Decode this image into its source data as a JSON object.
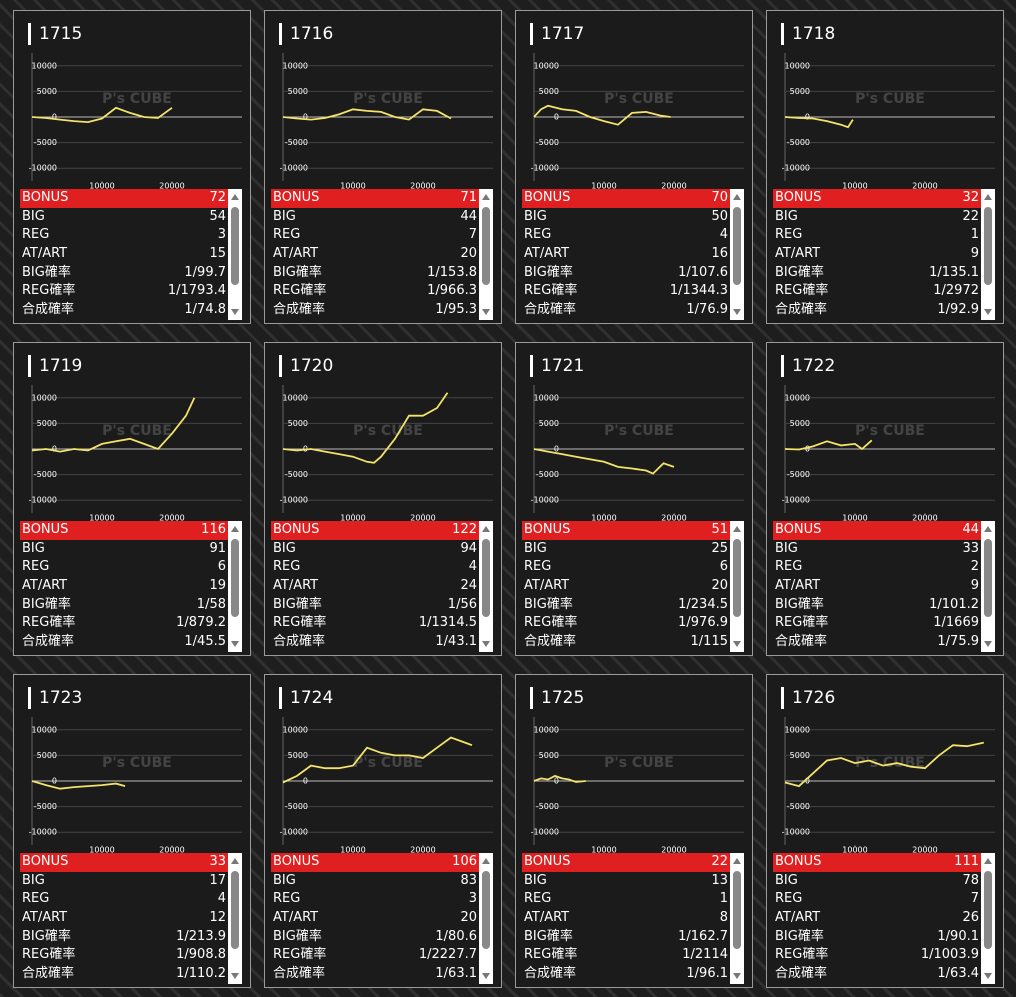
{
  "watermark": "P's CUBE",
  "chart_data": [
    {
      "type": "line",
      "title": "1715",
      "color": "#f3e36a",
      "xlim": [
        0,
        30000
      ],
      "ylim": [
        -12500,
        12500
      ],
      "xticks": [
        10000,
        20000
      ],
      "yticks": [
        -10000,
        -5000,
        0,
        5000,
        10000
      ],
      "grid": true,
      "x": [
        0,
        2000,
        4000,
        6000,
        8000,
        10000,
        12000,
        14000,
        16000,
        18000,
        20000
      ],
      "values": [
        0,
        -200,
        -500,
        -800,
        -1000,
        -300,
        1800,
        800,
        0,
        -200,
        1800
      ],
      "stats": [
        {
          "label": "BONUS",
          "value": 72
        },
        {
          "label": "BIG",
          "value": 54
        },
        {
          "label": "REG",
          "value": 3
        },
        {
          "label": "AT/ART",
          "value": 15
        },
        {
          "label": "BIG確率",
          "value": "1/99.7"
        },
        {
          "label": "REG確率",
          "value": "1/1793.4"
        },
        {
          "label": "合成確率",
          "value": "1/74.8"
        }
      ]
    },
    {
      "type": "line",
      "title": "1716",
      "color": "#f3e36a",
      "xlim": [
        0,
        30000
      ],
      "ylim": [
        -12500,
        12500
      ],
      "xticks": [
        10000,
        20000
      ],
      "yticks": [
        -10000,
        -5000,
        0,
        5000,
        10000
      ],
      "grid": true,
      "x": [
        0,
        2000,
        4000,
        6000,
        8000,
        10000,
        12000,
        14000,
        16000,
        18000,
        20000,
        22000,
        24000
      ],
      "values": [
        0,
        -300,
        -500,
        -200,
        500,
        1500,
        1200,
        1000,
        0,
        -500,
        1500,
        1200,
        -300
      ],
      "stats": [
        {
          "label": "BONUS",
          "value": 71
        },
        {
          "label": "BIG",
          "value": 44
        },
        {
          "label": "REG",
          "value": 7
        },
        {
          "label": "AT/ART",
          "value": 20
        },
        {
          "label": "BIG確率",
          "value": "1/153.8"
        },
        {
          "label": "REG確率",
          "value": "1/966.3"
        },
        {
          "label": "合成確率",
          "value": "1/95.3"
        }
      ]
    },
    {
      "type": "line",
      "title": "1717",
      "color": "#f3e36a",
      "xlim": [
        0,
        30000
      ],
      "ylim": [
        -12500,
        12500
      ],
      "xticks": [
        10000,
        20000
      ],
      "yticks": [
        -10000,
        -5000,
        0,
        5000,
        10000
      ],
      "grid": true,
      "x": [
        0,
        1000,
        2000,
        4000,
        6000,
        8000,
        10000,
        12000,
        14000,
        16000,
        18000,
        19500
      ],
      "values": [
        0,
        1500,
        2200,
        1500,
        1200,
        0,
        -800,
        -1500,
        800,
        1000,
        300,
        0
      ],
      "stats": [
        {
          "label": "BONUS",
          "value": 70
        },
        {
          "label": "BIG",
          "value": 50
        },
        {
          "label": "REG",
          "value": 4
        },
        {
          "label": "AT/ART",
          "value": 16
        },
        {
          "label": "BIG確率",
          "value": "1/107.6"
        },
        {
          "label": "REG確率",
          "value": "1/1344.3"
        },
        {
          "label": "合成確率",
          "value": "1/76.9"
        }
      ]
    },
    {
      "type": "line",
      "title": "1718",
      "color": "#f3e36a",
      "xlim": [
        0,
        30000
      ],
      "ylim": [
        -12500,
        12500
      ],
      "xticks": [
        10000,
        20000
      ],
      "yticks": [
        -10000,
        -5000,
        0,
        5000,
        10000
      ],
      "grid": true,
      "x": [
        0,
        2000,
        4000,
        6000,
        8000,
        9000,
        9700
      ],
      "values": [
        0,
        -200,
        -300,
        -800,
        -1500,
        -2000,
        -500
      ],
      "stats": [
        {
          "label": "BONUS",
          "value": 32
        },
        {
          "label": "BIG",
          "value": 22
        },
        {
          "label": "REG",
          "value": 1
        },
        {
          "label": "AT/ART",
          "value": 9
        },
        {
          "label": "BIG確率",
          "value": "1/135.1"
        },
        {
          "label": "REG確率",
          "value": "1/2972"
        },
        {
          "label": "合成確率",
          "value": "1/92.9"
        }
      ]
    },
    {
      "type": "line",
      "title": "1719",
      "color": "#f3e36a",
      "xlim": [
        0,
        30000
      ],
      "ylim": [
        -12500,
        12500
      ],
      "xticks": [
        10000,
        20000
      ],
      "yticks": [
        -10000,
        -5000,
        0,
        5000,
        10000
      ],
      "grid": true,
      "x": [
        0,
        2000,
        4000,
        6000,
        8000,
        10000,
        12000,
        14000,
        16000,
        18000,
        20000,
        22000,
        23200
      ],
      "values": [
        -300,
        0,
        -500,
        0,
        -300,
        1000,
        1500,
        2000,
        1000,
        0,
        3000,
        6500,
        10000
      ],
      "stats": [
        {
          "label": "BONUS",
          "value": 116
        },
        {
          "label": "BIG",
          "value": 91
        },
        {
          "label": "REG",
          "value": 6
        },
        {
          "label": "AT/ART",
          "value": 19
        },
        {
          "label": "BIG確率",
          "value": "1/58"
        },
        {
          "label": "REG確率",
          "value": "1/879.2"
        },
        {
          "label": "合成確率",
          "value": "1/45.5"
        }
      ]
    },
    {
      "type": "line",
      "title": "1720",
      "color": "#f3e36a",
      "xlim": [
        0,
        30000
      ],
      "ylim": [
        -12500,
        12500
      ],
      "xticks": [
        10000,
        20000
      ],
      "yticks": [
        -10000,
        -5000,
        0,
        5000,
        10000
      ],
      "grid": true,
      "x": [
        0,
        2000,
        4000,
        6000,
        8000,
        10000,
        12000,
        13000,
        14000,
        16000,
        18000,
        20000,
        22000,
        23500
      ],
      "values": [
        0,
        -300,
        0,
        -500,
        -1000,
        -1500,
        -2500,
        -2700,
        -1500,
        2000,
        6500,
        6500,
        8000,
        11000
      ],
      "stats": [
        {
          "label": "BONUS",
          "value": 122
        },
        {
          "label": "BIG",
          "value": 94
        },
        {
          "label": "REG",
          "value": 4
        },
        {
          "label": "AT/ART",
          "value": 24
        },
        {
          "label": "BIG確率",
          "value": "1/56"
        },
        {
          "label": "REG確率",
          "value": "1/1314.5"
        },
        {
          "label": "合成確率",
          "value": "1/43.1"
        }
      ]
    },
    {
      "type": "line",
      "title": "1721",
      "color": "#f3e36a",
      "xlim": [
        0,
        30000
      ],
      "ylim": [
        -12500,
        12500
      ],
      "xticks": [
        10000,
        20000
      ],
      "yticks": [
        -10000,
        -5000,
        0,
        5000,
        10000
      ],
      "grid": true,
      "x": [
        0,
        2000,
        4000,
        6000,
        8000,
        10000,
        12000,
        14000,
        16000,
        17000,
        18500,
        20000
      ],
      "values": [
        0,
        -500,
        -1000,
        -1500,
        -2000,
        -2500,
        -3500,
        -3800,
        -4200,
        -4800,
        -2800,
        -3500
      ],
      "stats": [
        {
          "label": "BONUS",
          "value": 51
        },
        {
          "label": "BIG",
          "value": 25
        },
        {
          "label": "REG",
          "value": 6
        },
        {
          "label": "AT/ART",
          "value": 20
        },
        {
          "label": "BIG確率",
          "value": "1/234.5"
        },
        {
          "label": "REG確率",
          "value": "1/976.9"
        },
        {
          "label": "合成確率",
          "value": "1/115"
        }
      ]
    },
    {
      "type": "line",
      "title": "1722",
      "color": "#f3e36a",
      "xlim": [
        0,
        30000
      ],
      "ylim": [
        -12500,
        12500
      ],
      "xticks": [
        10000,
        20000
      ],
      "yticks": [
        -10000,
        -5000,
        0,
        5000,
        10000
      ],
      "grid": true,
      "x": [
        0,
        2000,
        4000,
        6000,
        8000,
        10000,
        11000,
        12400
      ],
      "values": [
        0,
        -100,
        500,
        1500,
        700,
        1000,
        0,
        1700
      ],
      "stats": [
        {
          "label": "BONUS",
          "value": 44
        },
        {
          "label": "BIG",
          "value": 33
        },
        {
          "label": "REG",
          "value": 2
        },
        {
          "label": "AT/ART",
          "value": 9
        },
        {
          "label": "BIG確率",
          "value": "1/101.2"
        },
        {
          "label": "REG確率",
          "value": "1/1669"
        },
        {
          "label": "合成確率",
          "value": "1/75.9"
        }
      ]
    },
    {
      "type": "line",
      "title": "1723",
      "color": "#f3e36a",
      "xlim": [
        0,
        30000
      ],
      "ylim": [
        -12500,
        12500
      ],
      "xticks": [
        10000,
        20000
      ],
      "yticks": [
        -10000,
        -5000,
        0,
        5000,
        10000
      ],
      "grid": true,
      "x": [
        0,
        2000,
        4000,
        6000,
        8000,
        10000,
        12000,
        13300
      ],
      "values": [
        0,
        -800,
        -1500,
        -1200,
        -1000,
        -800,
        -500,
        -1000
      ],
      "stats": [
        {
          "label": "BONUS",
          "value": 33
        },
        {
          "label": "BIG",
          "value": 17
        },
        {
          "label": "REG",
          "value": 4
        },
        {
          "label": "AT/ART",
          "value": 12
        },
        {
          "label": "BIG確率",
          "value": "1/213.9"
        },
        {
          "label": "REG確率",
          "value": "1/908.8"
        },
        {
          "label": "合成確率",
          "value": "1/110.2"
        }
      ]
    },
    {
      "type": "line",
      "title": "1724",
      "color": "#f3e36a",
      "xlim": [
        0,
        30000
      ],
      "ylim": [
        -12500,
        12500
      ],
      "xticks": [
        10000,
        20000
      ],
      "yticks": [
        -10000,
        -5000,
        0,
        5000,
        10000
      ],
      "grid": true,
      "x": [
        0,
        2000,
        4000,
        6000,
        8000,
        10000,
        12000,
        14000,
        16000,
        18000,
        20000,
        22000,
        24000,
        26000,
        27000
      ],
      "values": [
        -300,
        1000,
        3000,
        2500,
        2500,
        3000,
        6500,
        5500,
        5000,
        5000,
        4500,
        6500,
        8500,
        7500,
        7000
      ],
      "stats": [
        {
          "label": "BONUS",
          "value": 106
        },
        {
          "label": "BIG",
          "value": 83
        },
        {
          "label": "REG",
          "value": 3
        },
        {
          "label": "AT/ART",
          "value": 20
        },
        {
          "label": "BIG確率",
          "value": "1/80.6"
        },
        {
          "label": "REG確率",
          "value": "1/2227.7"
        },
        {
          "label": "合成確率",
          "value": "1/63.1"
        }
      ]
    },
    {
      "type": "line",
      "title": "1725",
      "color": "#f3e36a",
      "xlim": [
        0,
        30000
      ],
      "ylim": [
        -12500,
        12500
      ],
      "xticks": [
        10000,
        20000
      ],
      "yticks": [
        -10000,
        -5000,
        0,
        5000,
        10000
      ],
      "grid": true,
      "x": [
        0,
        1000,
        2000,
        3000,
        4000,
        5000,
        6000,
        7400
      ],
      "values": [
        0,
        500,
        300,
        1000,
        500,
        300,
        -200,
        0
      ],
      "stats": [
        {
          "label": "BONUS",
          "value": 22
        },
        {
          "label": "BIG",
          "value": 13
        },
        {
          "label": "REG",
          "value": 1
        },
        {
          "label": "AT/ART",
          "value": 8
        },
        {
          "label": "BIG確率",
          "value": "1/162.7"
        },
        {
          "label": "REG確率",
          "value": "1/2114"
        },
        {
          "label": "合成確率",
          "value": "1/96.1"
        }
      ]
    },
    {
      "type": "line",
      "title": "1726",
      "color": "#f3e36a",
      "xlim": [
        0,
        30000
      ],
      "ylim": [
        -12500,
        12500
      ],
      "xticks": [
        10000,
        20000
      ],
      "yticks": [
        -10000,
        -5000,
        0,
        5000,
        10000
      ],
      "grid": true,
      "x": [
        0,
        2000,
        4000,
        6000,
        8000,
        10000,
        12000,
        14000,
        16000,
        18000,
        20000,
        22000,
        24000,
        26000,
        28400
      ],
      "values": [
        -300,
        -1000,
        1500,
        4000,
        4500,
        3500,
        4000,
        3000,
        3500,
        2800,
        2500,
        5000,
        7000,
        6800,
        7500
      ],
      "stats": [
        {
          "label": "BONUS",
          "value": 111
        },
        {
          "label": "BIG",
          "value": 78
        },
        {
          "label": "REG",
          "value": 7
        },
        {
          "label": "AT/ART",
          "value": 26
        },
        {
          "label": "BIG確率",
          "value": "1/90.1"
        },
        {
          "label": "REG確率",
          "value": "1/1003.9"
        },
        {
          "label": "合成確率",
          "value": "1/63.4"
        }
      ]
    }
  ]
}
